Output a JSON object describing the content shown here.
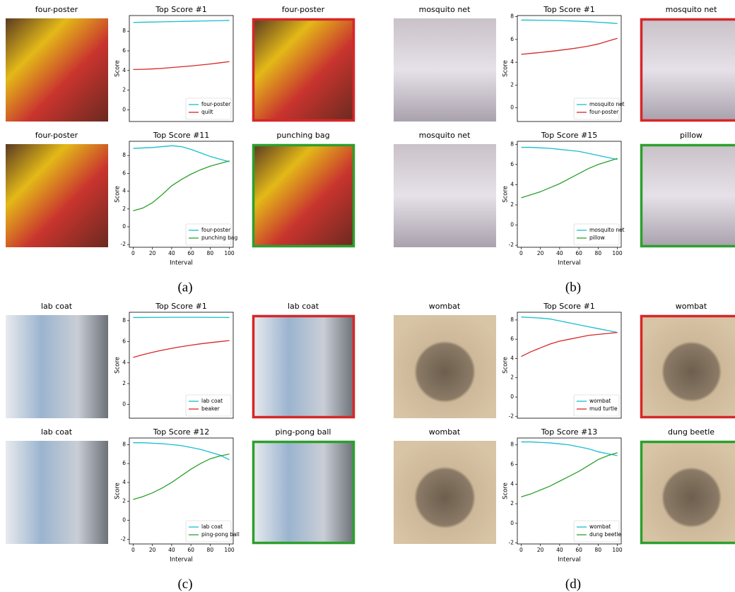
{
  "figure": {
    "panels": [
      {
        "label": "(a)",
        "rows": [
          {
            "left_title": "four-poster",
            "right_title": "four-poster",
            "right_border": "#d62728"
          },
          {
            "left_title": "four-poster",
            "right_title": "punching bag",
            "right_border": "#2ca02c"
          }
        ]
      },
      {
        "label": "(b)",
        "rows": [
          {
            "left_title": "mosquito net",
            "right_title": "mosquito net",
            "right_border": "#d62728"
          },
          {
            "left_title": "mosquito net",
            "right_title": "pillow",
            "right_border": "#2ca02c"
          }
        ]
      },
      {
        "label": "(c)",
        "rows": [
          {
            "left_title": "lab coat",
            "right_title": "lab coat",
            "right_border": "#d62728"
          },
          {
            "left_title": "lab coat",
            "right_title": "ping-pong ball",
            "right_border": "#2ca02c"
          }
        ]
      },
      {
        "label": "(d)",
        "rows": [
          {
            "left_title": "wombat",
            "right_title": "wombat",
            "right_border": "#d62728"
          },
          {
            "left_title": "wombat",
            "right_title": "dung beetle",
            "right_border": "#2ca02c"
          }
        ]
      }
    ]
  },
  "chart_data": [
    {
      "type": "line",
      "title": "Top Score #1",
      "ylabel": "Score",
      "legend": "lower right",
      "x": [
        0,
        10,
        20,
        30,
        40,
        50,
        60,
        70,
        80,
        90,
        100
      ],
      "xlim": [
        -4,
        104
      ],
      "ylim": [
        -1.2,
        9.6
      ],
      "yticks": [
        0,
        2,
        4,
        6,
        8
      ],
      "series": [
        {
          "name": "four-poster",
          "color": "#17becf",
          "values": [
            8.9,
            8.92,
            8.94,
            8.96,
            8.98,
            9.0,
            9.02,
            9.04,
            9.06,
            9.08,
            9.1
          ]
        },
        {
          "name": "quilt",
          "color": "#d62728",
          "values": [
            4.1,
            4.12,
            4.16,
            4.22,
            4.3,
            4.38,
            4.46,
            4.56,
            4.66,
            4.78,
            4.9
          ]
        }
      ]
    },
    {
      "type": "line",
      "title": "Top Score #11",
      "ylabel": "Score",
      "xlabel": "Interval",
      "legend": "lower right",
      "x": [
        0,
        10,
        20,
        30,
        40,
        50,
        60,
        70,
        80,
        90,
        100
      ],
      "xlim": [
        -4,
        104
      ],
      "ylim": [
        -2.3,
        9.6
      ],
      "xticks": [
        0,
        20,
        40,
        60,
        80,
        100
      ],
      "yticks": [
        -2,
        0,
        2,
        4,
        6,
        8
      ],
      "series": [
        {
          "name": "four-poster",
          "color": "#17becf",
          "values": [
            8.8,
            8.85,
            8.9,
            9.0,
            9.1,
            9.0,
            8.7,
            8.3,
            7.9,
            7.6,
            7.3
          ]
        },
        {
          "name": "punching bag",
          "color": "#2ca02c",
          "values": [
            1.8,
            2.1,
            2.7,
            3.6,
            4.6,
            5.3,
            5.9,
            6.4,
            6.8,
            7.1,
            7.4
          ]
        }
      ]
    },
    {
      "type": "line",
      "title": "Top Score #1",
      "ylabel": "Score",
      "legend": "lower right",
      "x": [
        0,
        10,
        20,
        30,
        40,
        50,
        60,
        70,
        80,
        90,
        100
      ],
      "xlim": [
        -4,
        104
      ],
      "ylim": [
        -1.2,
        8.1
      ],
      "yticks": [
        0,
        2,
        4,
        6,
        8
      ],
      "series": [
        {
          "name": "mosquito net",
          "color": "#17becf",
          "values": [
            7.7,
            7.7,
            7.69,
            7.68,
            7.66,
            7.63,
            7.6,
            7.56,
            7.51,
            7.46,
            7.4
          ]
        },
        {
          "name": "four-poster",
          "color": "#d62728",
          "values": [
            4.7,
            4.78,
            4.86,
            4.95,
            5.05,
            5.16,
            5.28,
            5.42,
            5.6,
            5.85,
            6.1
          ]
        }
      ]
    },
    {
      "type": "line",
      "title": "Top Score #15",
      "ylabel": "Score",
      "xlabel": "Interval",
      "legend": "lower right",
      "x": [
        0,
        10,
        20,
        30,
        40,
        50,
        60,
        70,
        80,
        90,
        100
      ],
      "xlim": [
        -4,
        104
      ],
      "ylim": [
        -2.2,
        8.3
      ],
      "xticks": [
        0,
        20,
        40,
        60,
        80,
        100
      ],
      "yticks": [
        -2,
        0,
        2,
        4,
        6,
        8
      ],
      "series": [
        {
          "name": "mosquito net",
          "color": "#17becf",
          "values": [
            7.7,
            7.7,
            7.65,
            7.6,
            7.5,
            7.4,
            7.3,
            7.1,
            6.9,
            6.7,
            6.5
          ]
        },
        {
          "name": "pillow",
          "color": "#2ca02c",
          "values": [
            2.7,
            3.0,
            3.3,
            3.7,
            4.1,
            4.6,
            5.1,
            5.6,
            6.0,
            6.3,
            6.6
          ]
        }
      ]
    },
    {
      "type": "line",
      "title": "Top Score #1",
      "ylabel": "Score",
      "legend": "lower right",
      "x": [
        0,
        10,
        20,
        30,
        40,
        50,
        60,
        70,
        80,
        90,
        100
      ],
      "xlim": [
        -4,
        104
      ],
      "ylim": [
        -1.3,
        8.8
      ],
      "yticks": [
        0,
        2,
        4,
        6,
        8
      ],
      "series": [
        {
          "name": "lab coat",
          "color": "#17becf",
          "values": [
            8.3,
            8.3,
            8.31,
            8.31,
            8.32,
            8.32,
            8.32,
            8.32,
            8.31,
            8.31,
            8.3
          ]
        },
        {
          "name": "beaker",
          "color": "#d62728",
          "values": [
            4.5,
            4.75,
            4.98,
            5.18,
            5.36,
            5.52,
            5.66,
            5.79,
            5.9,
            6.0,
            6.1
          ]
        }
      ]
    },
    {
      "type": "line",
      "title": "Top Score #12",
      "ylabel": "Score",
      "xlabel": "Interval",
      "legend": "lower right",
      "x": [
        0,
        10,
        20,
        30,
        40,
        50,
        60,
        70,
        80,
        90,
        100
      ],
      "xlim": [
        -4,
        104
      ],
      "ylim": [
        -2.5,
        8.7
      ],
      "xticks": [
        0,
        20,
        40,
        60,
        80,
        100
      ],
      "yticks": [
        -2,
        0,
        2,
        4,
        6,
        8
      ],
      "series": [
        {
          "name": "lab coat",
          "color": "#17becf",
          "values": [
            8.2,
            8.2,
            8.15,
            8.1,
            8.0,
            7.9,
            7.7,
            7.5,
            7.2,
            6.9,
            6.4
          ]
        },
        {
          "name": "ping-pong ball",
          "color": "#2ca02c",
          "values": [
            2.2,
            2.5,
            2.9,
            3.4,
            4.0,
            4.7,
            5.4,
            6.0,
            6.5,
            6.8,
            7.0
          ]
        }
      ]
    },
    {
      "type": "line",
      "title": "Top Score #1",
      "ylabel": "Score",
      "legend": "lower right",
      "x": [
        0,
        10,
        20,
        30,
        40,
        50,
        60,
        70,
        80,
        90,
        100
      ],
      "xlim": [
        -4,
        104
      ],
      "ylim": [
        -2.2,
        8.8
      ],
      "yticks": [
        -2,
        0,
        2,
        4,
        6,
        8
      ],
      "series": [
        {
          "name": "wombat",
          "color": "#17becf",
          "values": [
            8.3,
            8.25,
            8.2,
            8.1,
            7.9,
            7.7,
            7.5,
            7.3,
            7.1,
            6.9,
            6.7
          ]
        },
        {
          "name": "mud turtle",
          "color": "#d62728",
          "values": [
            4.2,
            4.7,
            5.1,
            5.5,
            5.8,
            6.0,
            6.2,
            6.4,
            6.5,
            6.6,
            6.7
          ]
        }
      ]
    },
    {
      "type": "line",
      "title": "Top Score #13",
      "ylabel": "Score",
      "xlabel": "Interval",
      "legend": "lower right",
      "x": [
        0,
        10,
        20,
        30,
        40,
        50,
        60,
        70,
        80,
        90,
        100
      ],
      "xlim": [
        -4,
        104
      ],
      "ylim": [
        -2.1,
        8.7
      ],
      "xticks": [
        0,
        20,
        40,
        60,
        80,
        100
      ],
      "yticks": [
        -2,
        0,
        2,
        4,
        6,
        8
      ],
      "series": [
        {
          "name": "wombat",
          "color": "#17becf",
          "values": [
            8.3,
            8.3,
            8.25,
            8.2,
            8.1,
            8.0,
            7.8,
            7.6,
            7.3,
            7.1,
            6.9
          ]
        },
        {
          "name": "dung beetle",
          "color": "#2ca02c",
          "values": [
            2.7,
            3.0,
            3.4,
            3.8,
            4.3,
            4.8,
            5.3,
            5.9,
            6.5,
            6.9,
            7.2
          ]
        }
      ]
    }
  ]
}
